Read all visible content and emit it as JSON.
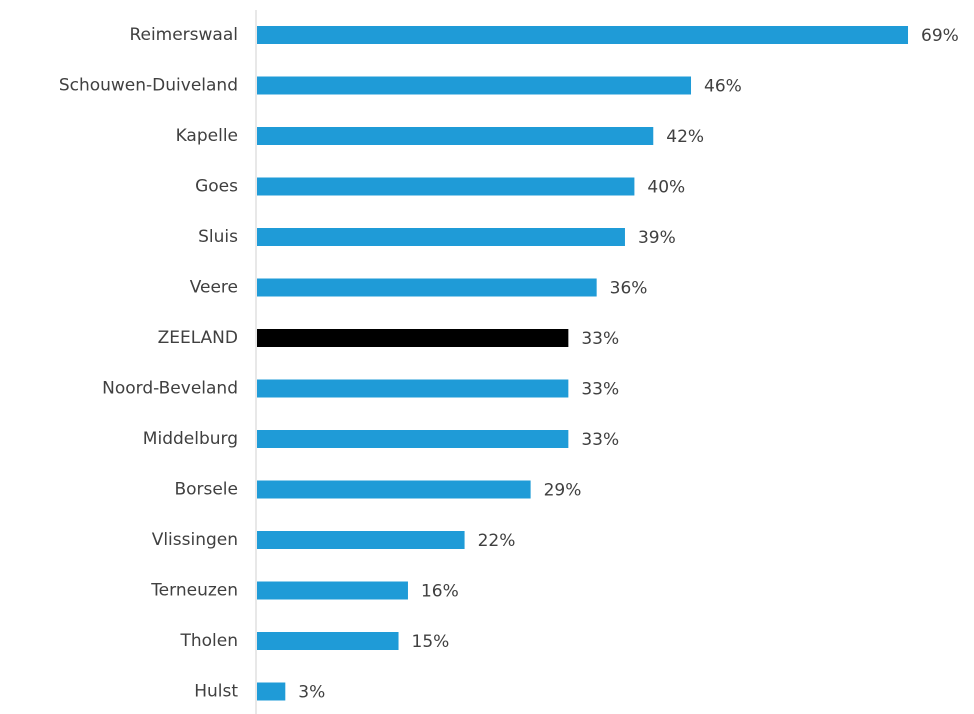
{
  "chart_data": {
    "type": "bar",
    "orientation": "horizontal",
    "categories": [
      "Reimerswaal",
      "Schouwen-Duiveland",
      "Kapelle",
      "Goes",
      "Sluis",
      "Veere",
      "ZEELAND",
      "Noord-Beveland",
      "Middelburg",
      "Borsele",
      "Vlissingen",
      "Terneuzen",
      "Tholen",
      "Hulst"
    ],
    "values": [
      69,
      46,
      42,
      40,
      39,
      36,
      33,
      33,
      33,
      29,
      22,
      16,
      15,
      3
    ],
    "value_labels": [
      "69%",
      "46%",
      "42%",
      "40%",
      "39%",
      "36%",
      "33%",
      "33%",
      "33%",
      "29%",
      "22%",
      "16%",
      "15%",
      "3%"
    ],
    "colors": [
      "#1f9bd7",
      "#1f9bd7",
      "#1f9bd7",
      "#1f9bd7",
      "#1f9bd7",
      "#1f9bd7",
      "#000000",
      "#1f9bd7",
      "#1f9bd7",
      "#1f9bd7",
      "#1f9bd7",
      "#1f9bd7",
      "#1f9bd7",
      "#1f9bd7"
    ]
  }
}
